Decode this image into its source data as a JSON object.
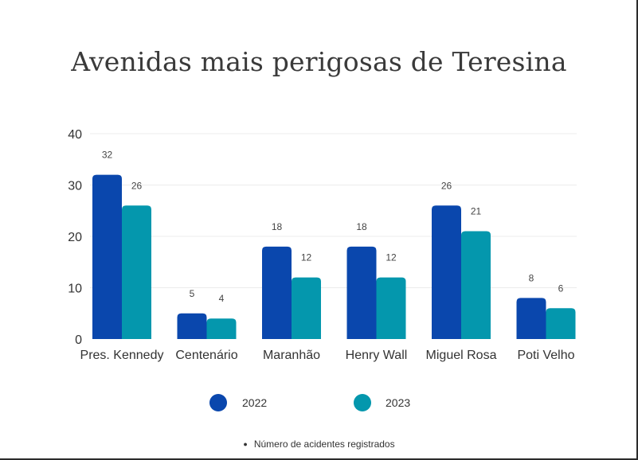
{
  "chart_data": {
    "type": "bar",
    "title": "Avenidas mais perigosas de Teresina",
    "categories": [
      "Pres. Kennedy",
      "Centenário",
      "Maranhão",
      "Henry Wall",
      "Miguel Rosa",
      "Poti Velho"
    ],
    "series": [
      {
        "name": "2022",
        "color": "#0a47ad",
        "values": [
          32,
          5,
          18,
          18,
          26,
          8
        ]
      },
      {
        "name": "2023",
        "color": "#0497ad",
        "values": [
          26,
          4,
          12,
          12,
          21,
          6
        ]
      }
    ],
    "yticks": [
      "0",
      "10",
      "20",
      "30",
      "40"
    ],
    "ylim": [
      0,
      40
    ],
    "grid": true,
    "legend": "bottom",
    "note": "Número de acidentes registrados"
  }
}
